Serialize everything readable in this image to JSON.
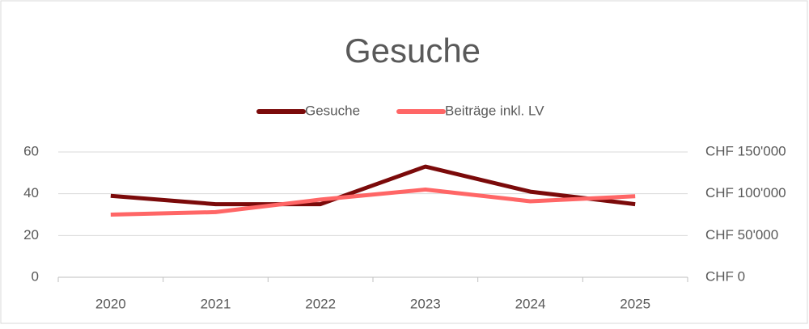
{
  "chart_data": {
    "type": "line",
    "title": "Gesuche",
    "categories": [
      "2020",
      "2021",
      "2022",
      "2023",
      "2024",
      "2025"
    ],
    "series": [
      {
        "name": "Gesuche",
        "color": "#7b0a0a",
        "values": [
          39,
          35,
          35,
          53,
          41,
          35
        ]
      },
      {
        "name": "Beiträge inkl. LV",
        "color": "#ff6666",
        "axis": "y2",
        "values": [
          75000,
          78000,
          93000,
          105000,
          91000,
          97000
        ]
      }
    ],
    "ylim": [
      0,
      60
    ],
    "yticks": [
      0,
      20,
      40,
      60
    ],
    "y2lim": [
      0,
      150000
    ],
    "y2ticks": [
      {
        "value": 0,
        "label": "CHF 0"
      },
      {
        "value": 50000,
        "label": "CHF 50'000"
      },
      {
        "value": 100000,
        "label": "CHF 100'000"
      },
      {
        "value": 150000,
        "label": "CHF 150'000"
      }
    ],
    "grid": true,
    "legend": "top"
  }
}
